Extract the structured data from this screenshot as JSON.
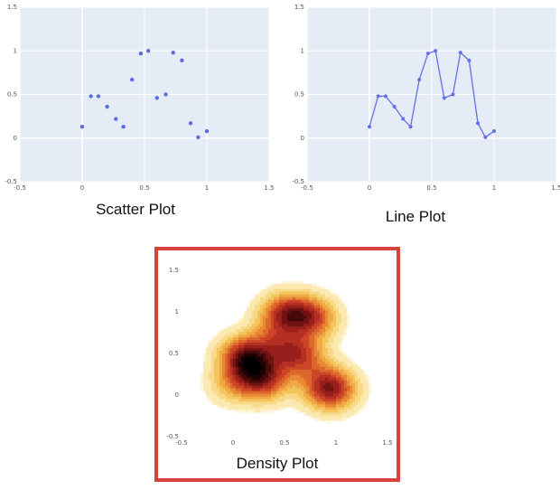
{
  "charts": [
    {
      "id": "scatter",
      "caption": "Scatter Plot",
      "chart_data": {
        "type": "scatter",
        "x": [
          0.0,
          0.07,
          0.13,
          0.2,
          0.27,
          0.33,
          0.4,
          0.47,
          0.53,
          0.6,
          0.67,
          0.73,
          0.8,
          0.87,
          0.93,
          1.0
        ],
        "y": [
          0.13,
          0.48,
          0.48,
          0.36,
          0.22,
          0.13,
          0.67,
          0.97,
          1.0,
          0.46,
          0.5,
          0.98,
          0.89,
          0.17,
          0.01,
          0.08
        ],
        "xlim": [
          -0.5,
          1.5
        ],
        "ylim": [
          -0.5,
          1.5
        ],
        "xticks": [
          "-0.5",
          "0",
          "0.5",
          "1",
          "1.5"
        ],
        "yticks": [
          "-0.5",
          "0",
          "0.5",
          "1",
          "1.5"
        ],
        "grid": true,
        "colors": {
          "background": "#e6ecf5",
          "marker": "#5b6de0",
          "grid": "#ffffff"
        }
      }
    },
    {
      "id": "line",
      "caption": "Line Plot",
      "chart_data": {
        "type": "line",
        "x": [
          0.0,
          0.07,
          0.13,
          0.2,
          0.27,
          0.33,
          0.4,
          0.47,
          0.53,
          0.6,
          0.67,
          0.73,
          0.8,
          0.87,
          0.93,
          1.0
        ],
        "y": [
          0.13,
          0.48,
          0.48,
          0.36,
          0.22,
          0.13,
          0.67,
          0.97,
          1.0,
          0.46,
          0.5,
          0.98,
          0.89,
          0.17,
          0.01,
          0.08
        ],
        "xlim": [
          -0.5,
          1.5
        ],
        "ylim": [
          -0.5,
          1.5
        ],
        "xticks": [
          "-0.5",
          "0",
          "0.5",
          "1",
          "1.5"
        ],
        "yticks": [
          "-0.5",
          "0",
          "0.5",
          "1",
          "1.5"
        ],
        "grid": true,
        "colors": {
          "background": "#e6ecf5",
          "line": "#6272e6",
          "grid": "#ffffff"
        }
      }
    },
    {
      "id": "density",
      "caption": "Density Plot",
      "chart_data": {
        "type": "heatmap",
        "x": [
          0.0,
          0.07,
          0.13,
          0.2,
          0.27,
          0.33,
          0.4,
          0.47,
          0.53,
          0.6,
          0.67,
          0.73,
          0.8,
          0.87,
          0.93,
          1.0
        ],
        "y": [
          0.13,
          0.48,
          0.48,
          0.36,
          0.22,
          0.13,
          0.67,
          0.97,
          1.0,
          0.46,
          0.5,
          0.98,
          0.89,
          0.17,
          0.01,
          0.08
        ],
        "xlim": [
          -0.5,
          1.5
        ],
        "ylim": [
          -0.5,
          1.5
        ],
        "xticks": [
          "-0.5",
          "0",
          "0.5",
          "1",
          "1.5"
        ],
        "yticks": [
          "-0.5",
          "0",
          "0.5",
          "1",
          "1.5"
        ],
        "grid": false,
        "colors": {
          "low": "#fdf4d2",
          "mid": "#c0392b",
          "high": "#000000",
          "frame": "#d7433b"
        }
      }
    }
  ]
}
